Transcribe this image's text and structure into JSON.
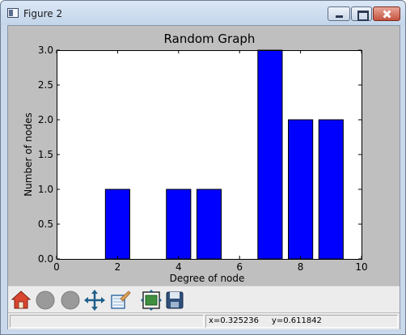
{
  "window": {
    "title": "Figure 2",
    "controls": [
      "minimize",
      "maximize",
      "close"
    ]
  },
  "toolbar": {
    "buttons": [
      {
        "name": "home",
        "icon": "home-icon"
      },
      {
        "name": "back",
        "icon": "back-icon"
      },
      {
        "name": "forward",
        "icon": "forward-icon"
      },
      {
        "name": "pan",
        "icon": "pan-icon"
      },
      {
        "name": "zoom",
        "icon": "zoom-icon"
      },
      {
        "name": "configure-subplots",
        "icon": "subplots-icon"
      },
      {
        "name": "save",
        "icon": "save-icon"
      }
    ]
  },
  "status": {
    "coords": "x=0.325236     y=0.611842"
  },
  "chart_data": {
    "type": "bar",
    "title": "Random Graph",
    "xlabel": "Degree of node",
    "ylabel": "Number of nodes",
    "x": [
      2,
      4,
      5,
      7,
      8,
      9
    ],
    "values": [
      1,
      1,
      1,
      3,
      2,
      2
    ],
    "bar_width": 0.8,
    "xlim": [
      0,
      10
    ],
    "ylim": [
      0,
      3
    ],
    "xticks": [
      0,
      2,
      4,
      6,
      8,
      10
    ],
    "xtick_labels": [
      "0",
      "2",
      "4",
      "6",
      "8",
      "10"
    ],
    "yticks": [
      0,
      0.5,
      1,
      1.5,
      2,
      2.5,
      3
    ],
    "ytick_labels": [
      "0.0",
      "0.5",
      "1.0",
      "1.5",
      "2.0",
      "2.5",
      "3.0"
    ],
    "bar_color": "#0000ff",
    "grid": false
  }
}
